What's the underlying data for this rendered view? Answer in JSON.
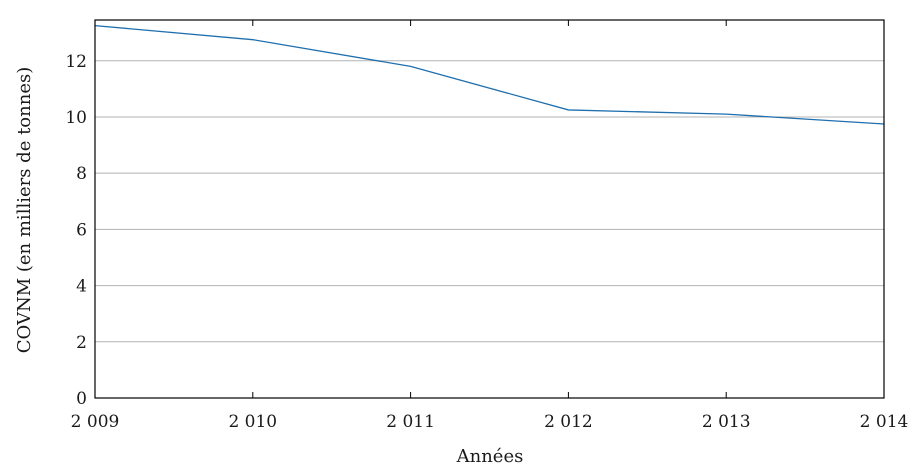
{
  "chart_data": {
    "type": "line",
    "title": "",
    "xlabel": "Années",
    "ylabel": "COVNM (en milliers de tonnes)",
    "x": [
      2009,
      2010,
      2011,
      2012,
      2013,
      2014
    ],
    "x_tick_labels": [
      "2 009",
      "2 010",
      "2 011",
      "2 012",
      "2 013",
      "2 014"
    ],
    "y_ticks": [
      0,
      2,
      4,
      6,
      8,
      10,
      12
    ],
    "y_tick_labels": [
      "0",
      "2",
      "4",
      "6",
      "8",
      "10",
      "12"
    ],
    "xlim": [
      2009,
      2014
    ],
    "ylim": [
      0,
      13.45
    ],
    "grid": "horizontal",
    "series": [
      {
        "color": "#1f6fae",
        "values": [
          13.25,
          12.75,
          11.8,
          10.25,
          10.1,
          9.75
        ]
      }
    ]
  }
}
